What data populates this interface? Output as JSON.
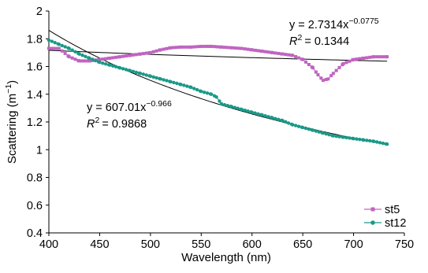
{
  "chart_data": {
    "type": "scatter",
    "xlabel": "Wavelength (nm)",
    "ylabel": {
      "text": "Scattering (m",
      "sup": "−1",
      "close": ")"
    },
    "xlim": [
      400,
      750
    ],
    "ylim": [
      0.4,
      2
    ],
    "x_ticks": [
      "400",
      "450",
      "500",
      "550",
      "600",
      "650",
      "700",
      "750"
    ],
    "y_ticks": [
      "0.4",
      "0.6",
      "0.8",
      "1",
      "1.2",
      "1.4",
      "1.6",
      "1.8",
      "2"
    ],
    "grid": false,
    "legend": "bottom-right",
    "series": [
      {
        "name": "st5",
        "color": "#c064c0",
        "marker": "square",
        "points": [
          [
            400,
            1.73
          ],
          [
            405,
            1.73
          ],
          [
            410,
            1.73
          ],
          [
            420,
            1.67
          ],
          [
            430,
            1.64
          ],
          [
            440,
            1.64
          ],
          [
            450,
            1.65
          ],
          [
            460,
            1.66
          ],
          [
            470,
            1.67
          ],
          [
            480,
            1.68
          ],
          [
            490,
            1.69
          ],
          [
            500,
            1.7
          ],
          [
            510,
            1.72
          ],
          [
            520,
            1.735
          ],
          [
            530,
            1.74
          ],
          [
            540,
            1.74
          ],
          [
            550,
            1.745
          ],
          [
            560,
            1.745
          ],
          [
            570,
            1.74
          ],
          [
            580,
            1.735
          ],
          [
            590,
            1.73
          ],
          [
            600,
            1.72
          ],
          [
            610,
            1.71
          ],
          [
            620,
            1.7
          ],
          [
            630,
            1.69
          ],
          [
            640,
            1.68
          ],
          [
            650,
            1.65
          ],
          [
            660,
            1.59
          ],
          [
            665,
            1.54
          ],
          [
            670,
            1.5
          ],
          [
            675,
            1.51
          ],
          [
            680,
            1.55
          ],
          [
            690,
            1.62
          ],
          [
            700,
            1.65
          ],
          [
            710,
            1.66
          ],
          [
            720,
            1.67
          ],
          [
            733,
            1.67
          ]
        ]
      },
      {
        "name": "st12",
        "color": "#1a9987",
        "marker": "circle",
        "points": [
          [
            400,
            1.79
          ],
          [
            410,
            1.76
          ],
          [
            420,
            1.73
          ],
          [
            430,
            1.69
          ],
          [
            440,
            1.66
          ],
          [
            450,
            1.63
          ],
          [
            460,
            1.61
          ],
          [
            470,
            1.59
          ],
          [
            480,
            1.57
          ],
          [
            490,
            1.55
          ],
          [
            500,
            1.53
          ],
          [
            510,
            1.51
          ],
          [
            520,
            1.49
          ],
          [
            530,
            1.47
          ],
          [
            540,
            1.45
          ],
          [
            550,
            1.42
          ],
          [
            560,
            1.4
          ],
          [
            565,
            1.38
          ],
          [
            570,
            1.33
          ],
          [
            580,
            1.31
          ],
          [
            590,
            1.29
          ],
          [
            600,
            1.27
          ],
          [
            610,
            1.25
          ],
          [
            620,
            1.23
          ],
          [
            630,
            1.21
          ],
          [
            640,
            1.18
          ],
          [
            650,
            1.16
          ],
          [
            660,
            1.14
          ],
          [
            670,
            1.12
          ],
          [
            680,
            1.1
          ],
          [
            690,
            1.09
          ],
          [
            700,
            1.08
          ],
          [
            710,
            1.07
          ],
          [
            720,
            1.06
          ],
          [
            733,
            1.04
          ]
        ]
      }
    ],
    "trendlines": [
      {
        "series": "st5",
        "a": 2.7314,
        "b": -0.0775,
        "eq_prefix": "y = 2.7314x",
        "eq_exp": "−0.0775",
        "r2_value": "= 0.1344"
      },
      {
        "series": "st12",
        "a": 607.01,
        "b": -0.966,
        "eq_prefix": "y = 607.01x",
        "eq_exp": "−0.966",
        "r2_value": "= 0.9868"
      }
    ],
    "r2_symbol": "R",
    "r2_sup": "2"
  }
}
